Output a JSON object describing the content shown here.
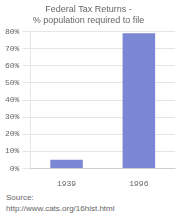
{
  "chart_data": {
    "type": "bar",
    "title": [
      "Federal Tax Returns -",
      "% population required to file"
    ],
    "categories": [
      "1939",
      "1996"
    ],
    "values": [
      5,
      79
    ],
    "color": "#7b86d4",
    "ylim": [
      0,
      80
    ],
    "yticks": [
      {
        "value": 0,
        "label": "0%"
      },
      {
        "value": 10,
        "label": "10%"
      },
      {
        "value": 20,
        "label": "20%"
      },
      {
        "value": 30,
        "label": "30%"
      },
      {
        "value": 40,
        "label": "40%"
      },
      {
        "value": 50,
        "label": "50%"
      },
      {
        "value": 60,
        "label": "60%"
      },
      {
        "value": 70,
        "label": "70%"
      },
      {
        "value": 80,
        "label": "80%"
      }
    ],
    "grid": true,
    "annotations": [
      "Source:",
      "http://www.cats.org/16hist.html"
    ]
  }
}
